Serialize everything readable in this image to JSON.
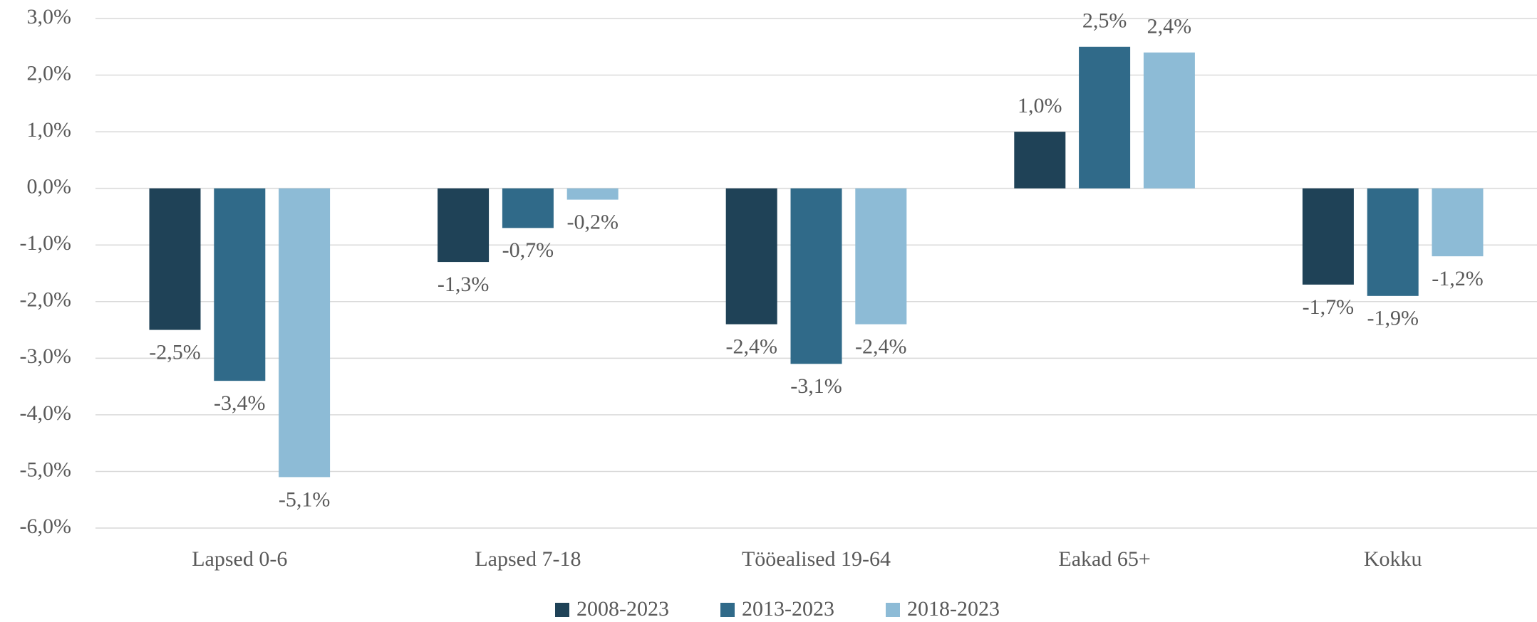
{
  "chart_data": {
    "type": "bar",
    "categories": [
      "Lapsed 0-6",
      "Lapsed 7-18",
      "Tööealised 19-64",
      "Eakad 65+",
      "Kokku"
    ],
    "series": [
      {
        "name": "2008-2023",
        "color": "#1f4257",
        "values": [
          -2.5,
          -1.3,
          -2.4,
          1.0,
          -1.7
        ],
        "value_labels": [
          "-2,5%",
          "-1,3%",
          "-2,4%",
          "1,0%",
          "-1,7%"
        ]
      },
      {
        "name": "2013-2023",
        "color": "#306a89",
        "values": [
          -3.4,
          -0.7,
          -3.1,
          2.5,
          -1.9
        ],
        "value_labels": [
          "-3,4%",
          "-0,7%",
          "-3,1%",
          "2,5%",
          "-1,9%"
        ]
      },
      {
        "name": "2018-2023",
        "color": "#8dbbd6",
        "values": [
          -5.1,
          -0.2,
          -2.4,
          2.4,
          -1.2
        ],
        "value_labels": [
          "-5,1%",
          "-0,2%",
          "-2,4%",
          "2,4%",
          "-1,2%"
        ]
      }
    ],
    "ylim": [
      -6,
      3
    ],
    "yticks": [
      {
        "value": -6,
        "label": "-6,0%"
      },
      {
        "value": -5,
        "label": "-5,0%"
      },
      {
        "value": -4,
        "label": "-4,0%"
      },
      {
        "value": -3,
        "label": "-3,0%"
      },
      {
        "value": -2,
        "label": "-2,0%"
      },
      {
        "value": -1,
        "label": "-1,0%"
      },
      {
        "value": 0,
        "label": "0,0%"
      },
      {
        "value": 1,
        "label": "1,0%"
      },
      {
        "value": 2,
        "label": "2,0%"
      },
      {
        "value": 3,
        "label": "3,0%"
      }
    ],
    "grid": true,
    "legend": "bottom"
  }
}
